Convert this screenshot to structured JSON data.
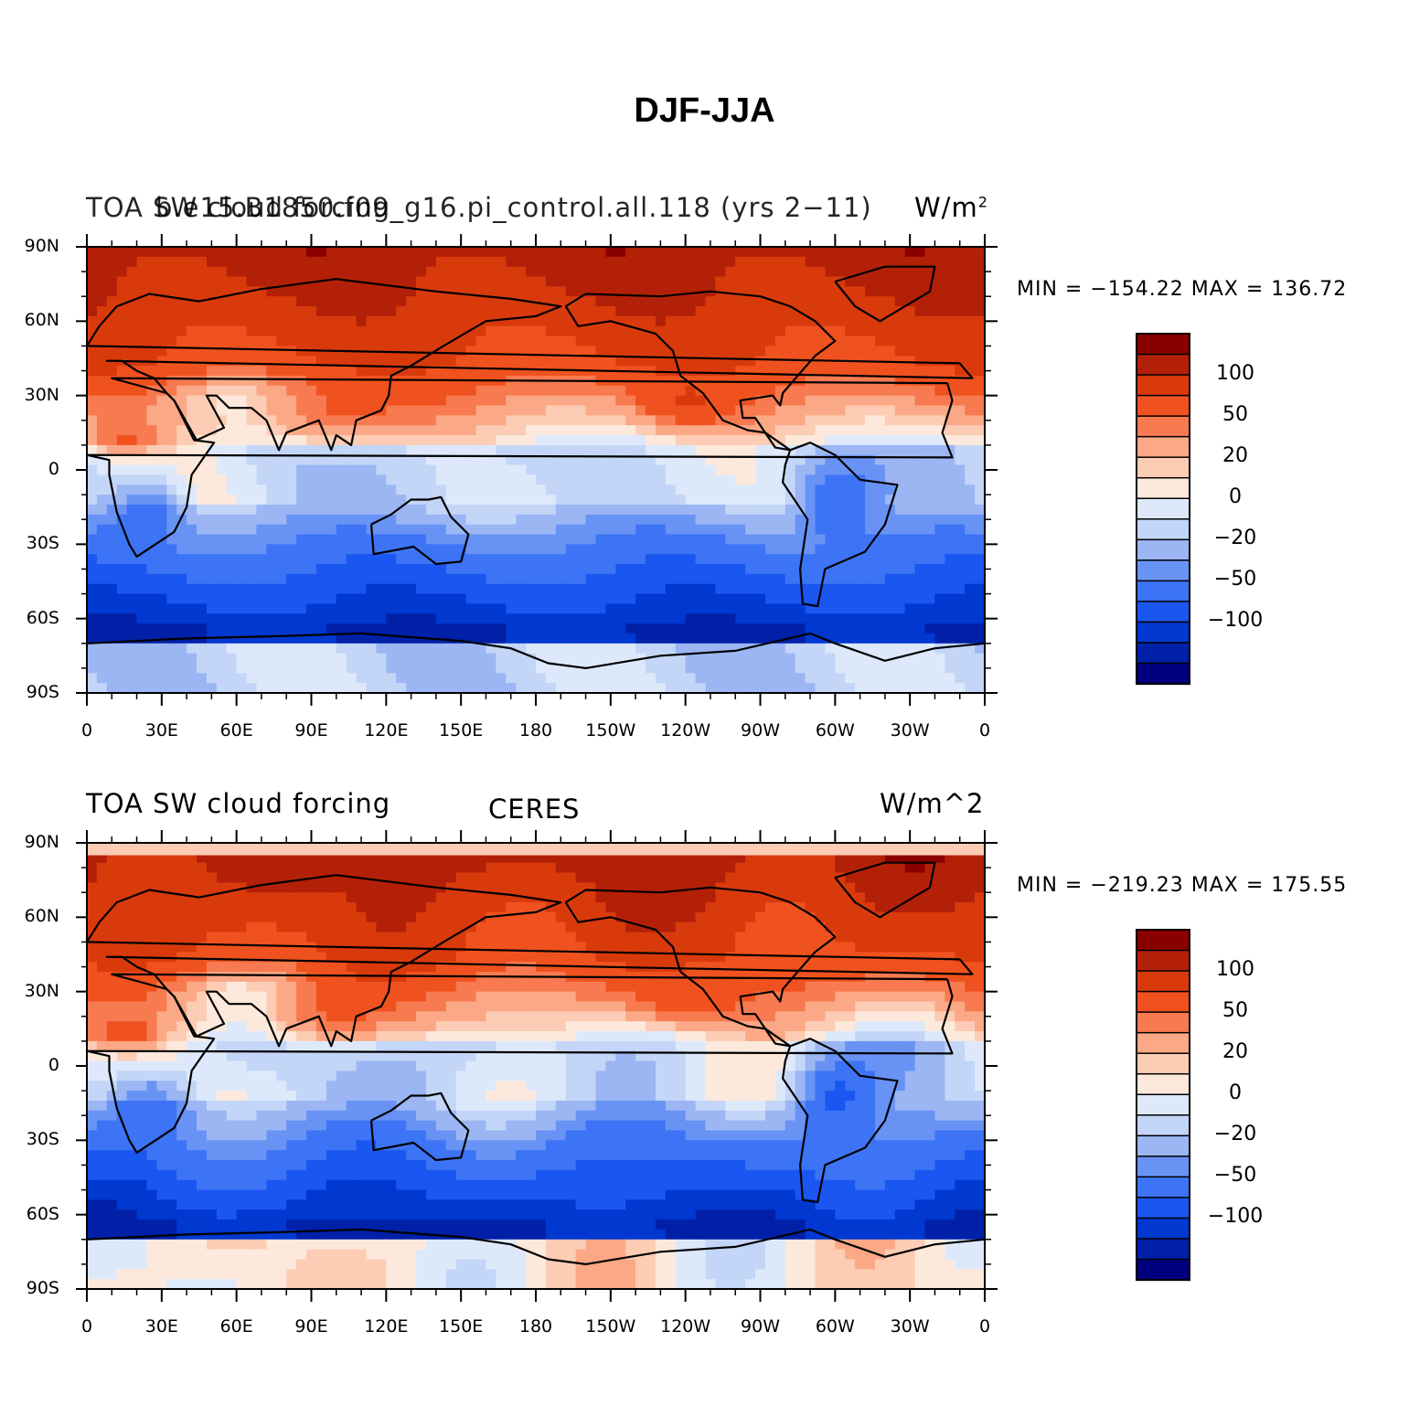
{
  "title": "DJF-JJA",
  "colors": [
    "#00007f",
    "#0020a8",
    "#0038d0",
    "#1a56f0",
    "#3d74f5",
    "#6992f5",
    "#9bb6f3",
    "#c3d6f8",
    "#dde9fb",
    "#fde9dc",
    "#fcccb4",
    "#fba886",
    "#f77a50",
    "#f0521f",
    "#d93a0c",
    "#b32008",
    "#8a0000"
  ],
  "lat_labels": [
    "90N",
    "60N",
    "30N",
    "0",
    "30S",
    "60S",
    "90S"
  ],
  "lon_labels": [
    "0",
    "30E",
    "60E",
    "90E",
    "120E",
    "150E",
    "180",
    "150W",
    "120W",
    "90W",
    "60W",
    "30W",
    "0"
  ],
  "colorbar_labels": [
    "100",
    "50",
    "20",
    "0",
    "−20",
    "−50",
    "−100"
  ],
  "panels": [
    {
      "left_text": "TOA SW cloud forcing",
      "center_text": "b.e15.B1850.f09_g16.pi_control.all.118 (yrs 2−11)",
      "units_text": "W/m",
      "units_sup": "2",
      "minmax": "MIN = −154.22  MAX = 136.72",
      "min": -154.22,
      "max": 136.72
    },
    {
      "left_text": "TOA SW cloud forcing",
      "center_text": "CERES",
      "units_text": "W/m^2",
      "units_sup": "",
      "minmax": "MIN = −219.23  MAX = 175.55",
      "min": -219.23,
      "max": 175.55
    }
  ]
}
